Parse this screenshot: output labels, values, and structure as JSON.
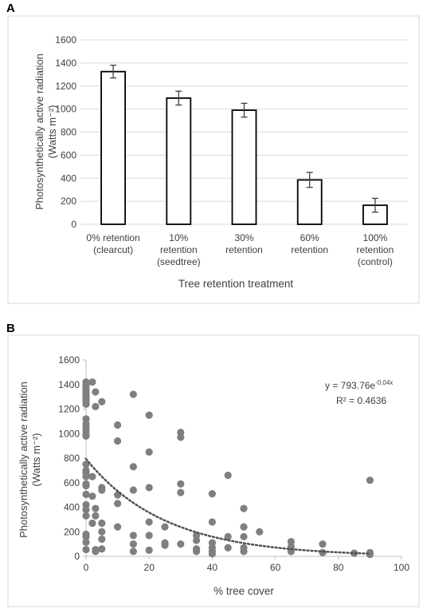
{
  "panels": {
    "a": "A",
    "b": "B"
  },
  "chart_data": [
    {
      "type": "bar",
      "panel": "A",
      "categories": [
        [
          "0% retention",
          "(clearcut)"
        ],
        [
          "10%",
          "retention",
          "(seedtree)"
        ],
        [
          "30%",
          "retention"
        ],
        [
          "60%",
          "retention"
        ],
        [
          "100%",
          "retention",
          "(control)"
        ]
      ],
      "values": [
        1325,
        1095,
        990,
        385,
        165
      ],
      "errors": [
        55,
        60,
        60,
        65,
        60
      ],
      "xlabel": "Tree retention treatment",
      "ylabel": [
        "Photosynthetically active radiation",
        "(Watts m⁻²)"
      ],
      "ylim": [
        0,
        1600
      ],
      "yticks": [
        "0",
        "200",
        "400",
        "600",
        "800",
        "1000",
        "1200",
        "1400",
        "1600"
      ],
      "grid": true,
      "bar_fill": "#ffffff",
      "bar_stroke": "#000000",
      "gridline_color": "#d9d9d9"
    },
    {
      "type": "scatter",
      "panel": "B",
      "xlabel": "% tree cover",
      "ylabel": [
        "Photosynthetically active radiation",
        "(Watts m⁻²)"
      ],
      "xlim": [
        0,
        100
      ],
      "ylim": [
        0,
        1600
      ],
      "xticks": [
        "0",
        "20",
        "40",
        "60",
        "80",
        "100"
      ],
      "yticks": [
        "0",
        "200",
        "400",
        "600",
        "800",
        "1000",
        "1200",
        "1400",
        "1600"
      ],
      "grid": false,
      "equation": "y = 793.76e",
      "equation_exponent": "-0.04x",
      "r_squared": "R² = 0.4636",
      "trendline": {
        "a": 793.76,
        "b": -0.04,
        "style": "dotted"
      },
      "point_color": "#7f7f7f",
      "points": [
        [
          0,
          1420
        ],
        [
          0,
          1400
        ],
        [
          0,
          1380
        ],
        [
          0,
          1360
        ],
        [
          0,
          1340
        ],
        [
          0,
          1320
        ],
        [
          0,
          1300
        ],
        [
          0,
          1280
        ],
        [
          0,
          1260
        ],
        [
          0,
          1240
        ],
        [
          0,
          1120
        ],
        [
          0,
          1080
        ],
        [
          0,
          1050
        ],
        [
          0,
          1020
        ],
        [
          0,
          990
        ],
        [
          0,
          980
        ],
        [
          0,
          750
        ],
        [
          0,
          700
        ],
        [
          0,
          680
        ],
        [
          0,
          650
        ],
        [
          0,
          590
        ],
        [
          0,
          575
        ],
        [
          0,
          505
        ],
        [
          0,
          420
        ],
        [
          0,
          380
        ],
        [
          0,
          330
        ],
        [
          0,
          180
        ],
        [
          0,
          160
        ],
        [
          0,
          115
        ],
        [
          0,
          55
        ],
        [
          2,
          1420
        ],
        [
          3,
          1340
        ],
        [
          3,
          1220
        ],
        [
          5,
          1260
        ],
        [
          2,
          650
        ],
        [
          2,
          490
        ],
        [
          2,
          270
        ],
        [
          3,
          390
        ],
        [
          3,
          330
        ],
        [
          3,
          55
        ],
        [
          3,
          40
        ],
        [
          5,
          560
        ],
        [
          5,
          540
        ],
        [
          5,
          270
        ],
        [
          5,
          200
        ],
        [
          5,
          140
        ],
        [
          5,
          60
        ],
        [
          10,
          1070
        ],
        [
          10,
          940
        ],
        [
          10,
          500
        ],
        [
          10,
          430
        ],
        [
          10,
          240
        ],
        [
          15,
          1320
        ],
        [
          15,
          730
        ],
        [
          15,
          540
        ],
        [
          15,
          170
        ],
        [
          15,
          100
        ],
        [
          15,
          40
        ],
        [
          20,
          1150
        ],
        [
          20,
          850
        ],
        [
          20,
          560
        ],
        [
          20,
          280
        ],
        [
          20,
          170
        ],
        [
          20,
          50
        ],
        [
          25,
          240
        ],
        [
          25,
          110
        ],
        [
          25,
          90
        ],
        [
          30,
          1010
        ],
        [
          30,
          970
        ],
        [
          30,
          590
        ],
        [
          30,
          520
        ],
        [
          30,
          100
        ],
        [
          35,
          170
        ],
        [
          35,
          130
        ],
        [
          35,
          60
        ],
        [
          35,
          40
        ],
        [
          40,
          510
        ],
        [
          40,
          280
        ],
        [
          40,
          110
        ],
        [
          40,
          70
        ],
        [
          40,
          40
        ],
        [
          40,
          20
        ],
        [
          45,
          660
        ],
        [
          45,
          160
        ],
        [
          45,
          70
        ],
        [
          50,
          390
        ],
        [
          50,
          240
        ],
        [
          50,
          160
        ],
        [
          50,
          70
        ],
        [
          50,
          40
        ],
        [
          55,
          200
        ],
        [
          65,
          120
        ],
        [
          65,
          80
        ],
        [
          65,
          40
        ],
        [
          75,
          100
        ],
        [
          75,
          30
        ],
        [
          85,
          25
        ],
        [
          90,
          620
        ],
        [
          90,
          30
        ],
        [
          90,
          15
        ]
      ]
    }
  ]
}
